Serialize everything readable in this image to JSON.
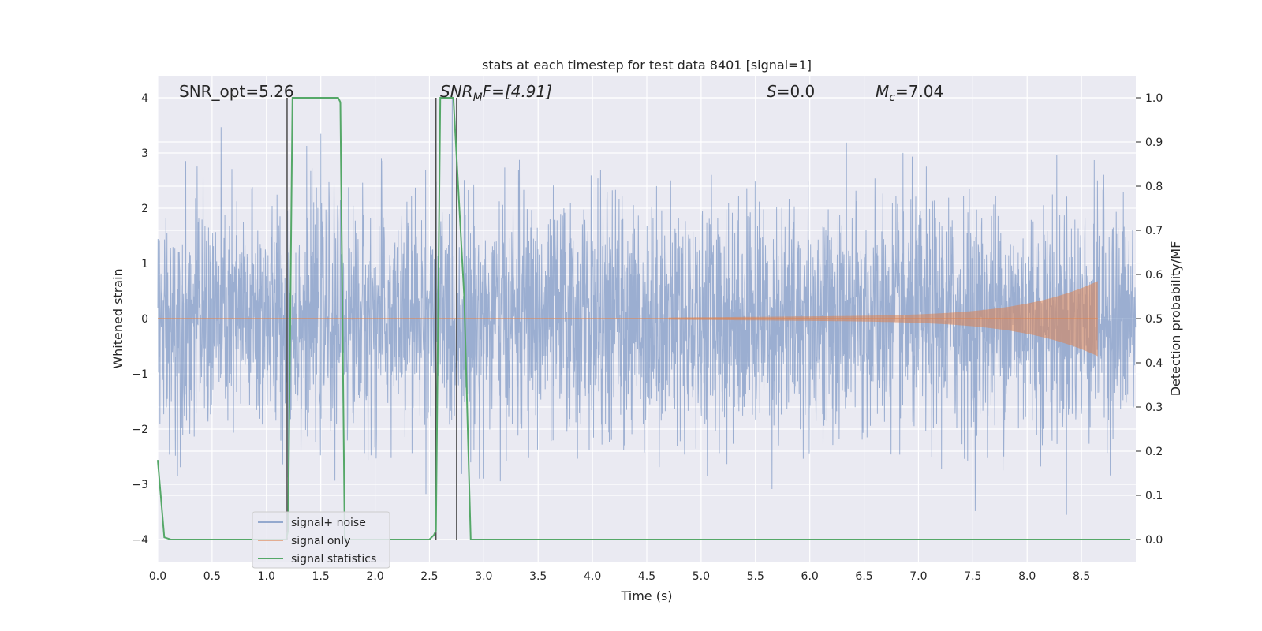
{
  "chart_data": {
    "type": "line",
    "title": "stats at each timestep for test data 8401 [signal=1]",
    "xlabel": "Time (s)",
    "ylabel": "Whitened strain",
    "y2label": "Detection probability/MF",
    "xlim": [
      0,
      9.0
    ],
    "ylim": [
      -4.4,
      4.4
    ],
    "y2lim": [
      -0.05,
      1.05
    ],
    "x_ticks": [
      0.0,
      0.5,
      1.0,
      1.5,
      2.0,
      2.5,
      3.0,
      3.5,
      4.0,
      4.5,
      5.0,
      5.5,
      6.0,
      6.5,
      7.0,
      7.5,
      8.0,
      8.5
    ],
    "y_ticks": [
      4,
      3,
      2,
      1,
      0,
      -1,
      -2,
      -3,
      -4
    ],
    "y2_ticks": [
      1.0,
      0.9,
      0.8,
      0.7,
      0.6,
      0.5,
      0.4,
      0.3,
      0.2,
      0.1,
      0.0
    ],
    "grid": true,
    "legend_position": "lower-left",
    "annotations": {
      "snr_opt": "SNR_opt=5.26",
      "snr_mf_main": "SNR",
      "snr_mf_sub": "M",
      "snr_mf_tail": "F=[4.91]",
      "s_var": "S",
      "s_tail": "=0.0",
      "mc_main": "M",
      "mc_sub": "c",
      "mc_tail": "=7.04"
    },
    "series": [
      {
        "name": "signal+ noise",
        "color": "#4c72b0",
        "description_values": "whitened noisy strain, roughly uniform band with extremes around -3.9 to 4.0",
        "duration": 9.0
      },
      {
        "name": "signal only",
        "color": "#dd8452",
        "chirp": {
          "t_start": 4.7,
          "t_end": 8.65,
          "amp_start": 0.02,
          "amp_end": 0.62
        }
      },
      {
        "name": "signal statistics",
        "color": "#55a868",
        "x": [
          0.0,
          0.06,
          0.12,
          1.18,
          1.2,
          1.24,
          1.5,
          1.66,
          1.68,
          1.72,
          2.5,
          2.54,
          2.56,
          2.6,
          2.66,
          2.72,
          2.82,
          2.88,
          8.95
        ],
        "y": [
          0.18,
          0.005,
          0.0,
          0.0,
          0.02,
          1.0,
          1.0,
          1.0,
          0.99,
          0.0,
          0.0,
          0.01,
          0.02,
          1.0,
          1.0,
          1.0,
          0.55,
          0.0,
          0.0
        ]
      }
    ],
    "vlines": [
      1.19,
      2.56,
      2.75
    ],
    "vline_color": "#4d4d4d",
    "vline_range": [
      0.0,
      1.0
    ]
  }
}
